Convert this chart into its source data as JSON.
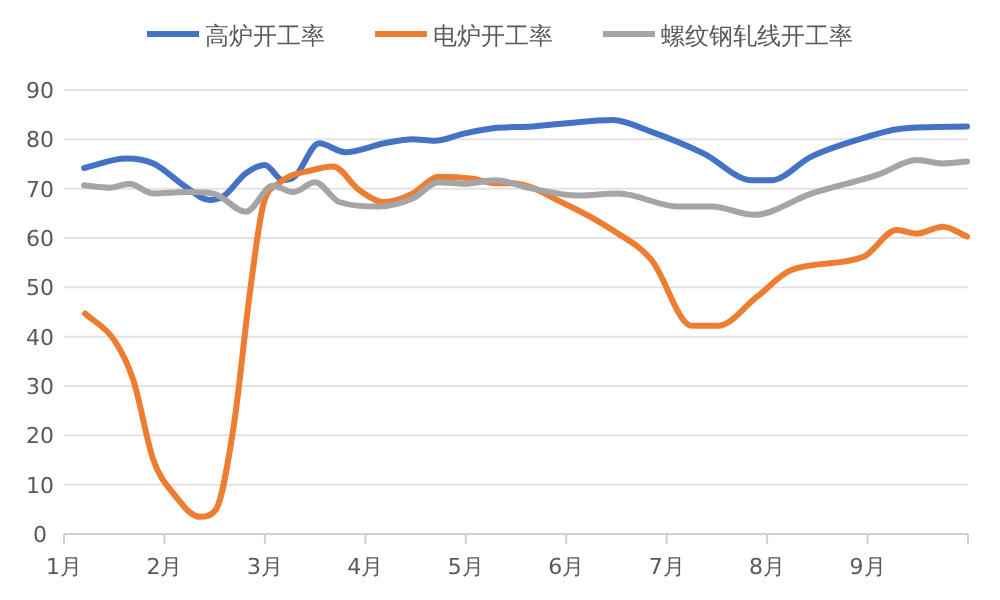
{
  "chart_data": {
    "type": "line",
    "xlim": [
      1,
      10
    ],
    "xticks": [
      {
        "value": 1,
        "label": "1月"
      },
      {
        "value": 2,
        "label": "2月"
      },
      {
        "value": 3,
        "label": "3月"
      },
      {
        "value": 4,
        "label": "4月"
      },
      {
        "value": 5,
        "label": "5月"
      },
      {
        "value": 6,
        "label": "6月"
      },
      {
        "value": 7,
        "label": "7月"
      },
      {
        "value": 8,
        "label": "8月"
      },
      {
        "value": 9,
        "label": "9月"
      },
      {
        "value": 10,
        "label": null
      }
    ],
    "ylim": [
      0,
      90
    ],
    "yticks": [
      0,
      10,
      20,
      30,
      40,
      50,
      60,
      70,
      80,
      90
    ],
    "grid": "y",
    "legend": "top",
    "marker": "none",
    "line_style": "solid",
    "series": [
      {
        "name": "高炉开工率",
        "color": "#4472c4",
        "x": [
          1.2,
          1.62,
          1.89,
          2.21,
          2.45,
          2.59,
          2.81,
          3.0,
          3.18,
          3.3,
          3.54,
          3.8,
          4.19,
          4.47,
          4.69,
          4.99,
          5.29,
          5.66,
          5.98,
          6.46,
          6.85,
          7.37,
          7.85,
          8.04,
          8.44,
          8.9,
          9.35,
          9.99
        ],
        "values": [
          74.2,
          76.1,
          75.1,
          70.4,
          67.7,
          68.5,
          73.1,
          74.8,
          71.7,
          72.5,
          79.2,
          77.4,
          79.2,
          80,
          79.7,
          81.2,
          82.3,
          82.6,
          83.2,
          83.9,
          81.5,
          77.1,
          71.7,
          71.7,
          76.5,
          79.9,
          82.2,
          82.6
        ]
      },
      {
        "name": "电炉开工率",
        "color": "#ed7d31",
        "x": [
          1.21,
          1.5,
          1.69,
          1.89,
          2.09,
          2.35,
          2.51,
          2.69,
          2.85,
          2.98,
          3.14,
          3.48,
          3.68,
          3.94,
          4.19,
          4.47,
          4.73,
          5.07,
          5.29,
          5.46,
          5.98,
          6.46,
          6.85,
          7.25,
          7.51,
          7.9,
          8.24,
          8.96,
          9.29,
          9.49,
          9.75,
          9.99
        ],
        "values": [
          44.7,
          39.3,
          31.2,
          15,
          8.2,
          3.5,
          4.9,
          21.9,
          48.8,
          66.4,
          71.1,
          73.8,
          74.5,
          69.7,
          67.3,
          69,
          72.4,
          72,
          71.1,
          71.1,
          67,
          61.6,
          55.5,
          42.2,
          42.2,
          48.1,
          53.5,
          56.2,
          61.6,
          60.9,
          62.3,
          60.3
        ]
      },
      {
        "name": "螺纹钢轧线开工率",
        "color": "#a5a5a5",
        "x": [
          1.2,
          1.46,
          1.65,
          1.89,
          2.21,
          2.49,
          2.81,
          3.08,
          3.28,
          3.5,
          3.74,
          4.13,
          4.47,
          4.73,
          4.99,
          5.29,
          5.66,
          6.12,
          6.52,
          7.11,
          7.45,
          7.87,
          8.44,
          9.1,
          9.49,
          9.75,
          9.99
        ],
        "values": [
          70.7,
          70.2,
          71,
          69,
          69.3,
          69,
          65.3,
          70.6,
          69.3,
          71.3,
          67.3,
          66.4,
          68,
          71.3,
          71,
          71.7,
          70,
          68.6,
          69,
          66.4,
          66.4,
          64.7,
          69,
          72.8,
          75.8,
          75.1,
          75.5
        ]
      }
    ]
  }
}
